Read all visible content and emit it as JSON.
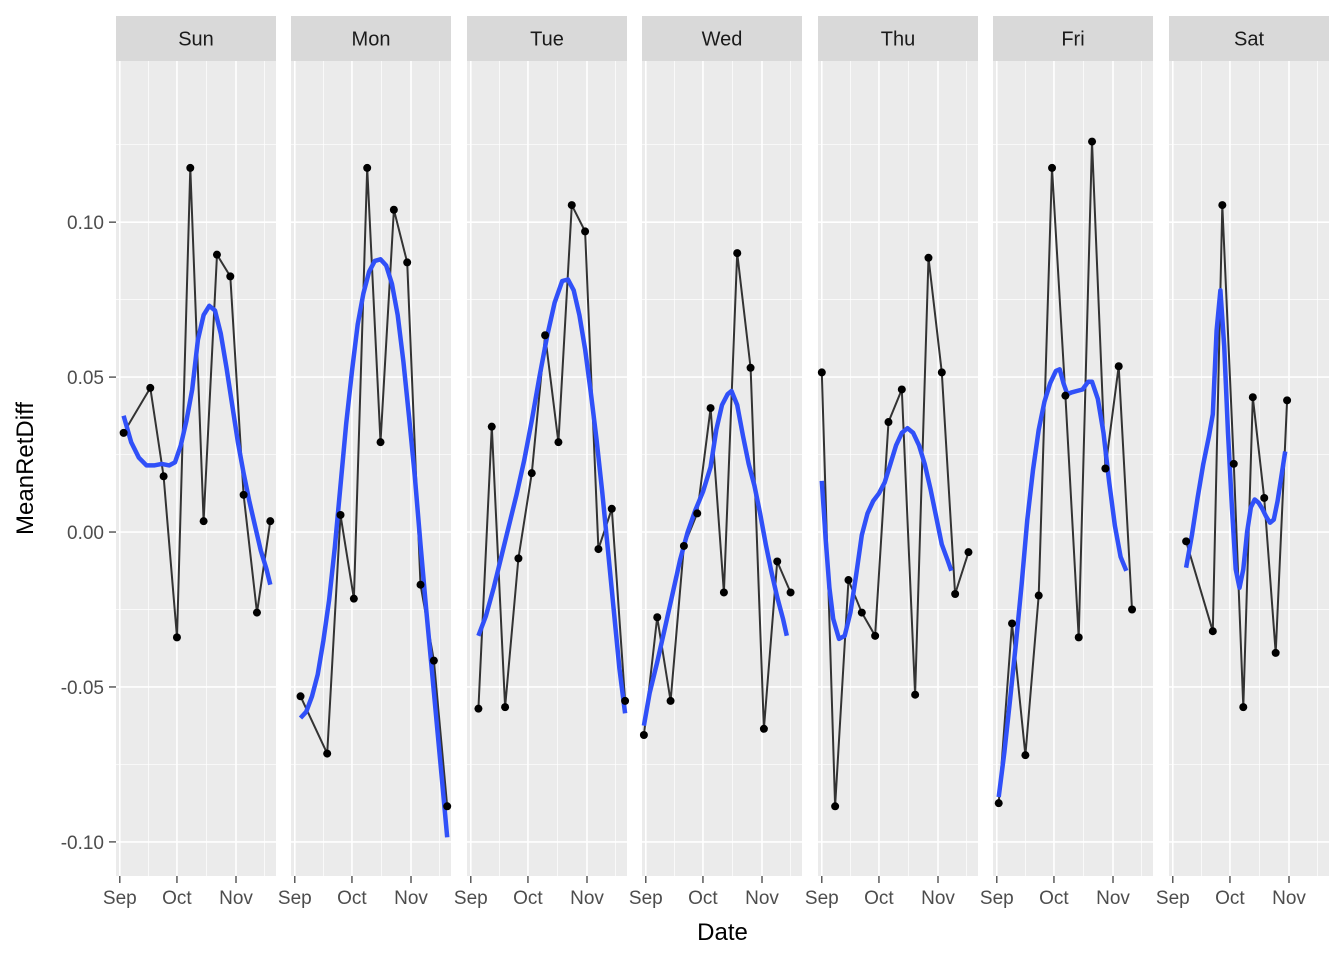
{
  "chart_data": {
    "type": "line",
    "facet_by": "weekday",
    "xlabel": "Date",
    "ylabel": "MeanRetDiff",
    "x_unit": "day of year 2015",
    "xlim": [
      242,
      326
    ],
    "ylim": [
      -0.111,
      0.152
    ],
    "y_ticks": [
      -0.1,
      -0.05,
      0.0,
      0.05,
      0.1
    ],
    "y_tick_labels": [
      "-0.10",
      "-0.05",
      "0.00",
      "0.05",
      "0.10"
    ],
    "x_ticks": [
      244,
      274,
      305
    ],
    "x_tick_labels": [
      "Sep",
      "Oct",
      "Nov"
    ],
    "grid": true,
    "colors": {
      "line": "#333333",
      "points": "#000000",
      "smooth": "#3050f8",
      "panel": "#ebebeb",
      "grid": "#ffffff",
      "strip": "#d9d9d9"
    },
    "panels": [
      {
        "name": "Sun",
        "points": [
          [
            246,
            0.032
          ],
          [
            260,
            0.0465
          ],
          [
            267,
            0.018
          ],
          [
            274,
            -0.034
          ],
          [
            281,
            0.1175
          ],
          [
            288,
            0.0035
          ],
          [
            295,
            0.0895
          ],
          [
            302,
            0.0825
          ],
          [
            309,
            0.012
          ],
          [
            316,
            -0.026
          ],
          [
            323,
            0.0035
          ]
        ],
        "smooth": [
          [
            246,
            0.0375
          ],
          [
            250,
            0.029
          ],
          [
            254,
            0.024
          ],
          [
            258,
            0.0215
          ],
          [
            262,
            0.0215
          ],
          [
            266,
            0.022
          ],
          [
            270,
            0.0215
          ],
          [
            273,
            0.0225
          ],
          [
            276,
            0.028
          ],
          [
            279,
            0.036
          ],
          [
            282,
            0.046
          ],
          [
            285,
            0.062
          ],
          [
            288,
            0.07
          ],
          [
            291,
            0.073
          ],
          [
            294,
            0.0715
          ],
          [
            297,
            0.064
          ],
          [
            300,
            0.053
          ],
          [
            303,
            0.041
          ],
          [
            306,
            0.029
          ],
          [
            309,
            0.019
          ],
          [
            312,
            0.01
          ],
          [
            315,
            0.002
          ],
          [
            318,
            -0.006
          ],
          [
            321,
            -0.012
          ],
          [
            323,
            -0.017
          ]
        ]
      },
      {
        "name": "Mon",
        "points": [
          [
            247,
            -0.053
          ],
          [
            261,
            -0.0715
          ],
          [
            268,
            0.0055
          ],
          [
            275,
            -0.0215
          ],
          [
            282,
            0.1175
          ],
          [
            289,
            0.029
          ],
          [
            296,
            0.104
          ],
          [
            303,
            0.087
          ],
          [
            310,
            -0.017
          ],
          [
            317,
            -0.0415
          ],
          [
            324,
            -0.0885
          ]
        ],
        "smooth": [
          [
            247,
            -0.06
          ],
          [
            250,
            -0.058
          ],
          [
            253,
            -0.053
          ],
          [
            256,
            -0.046
          ],
          [
            259,
            -0.035
          ],
          [
            262,
            -0.022
          ],
          [
            265,
            -0.005
          ],
          [
            268,
            0.015
          ],
          [
            271,
            0.035
          ],
          [
            274,
            0.052
          ],
          [
            277,
            0.067
          ],
          [
            280,
            0.077
          ],
          [
            283,
            0.084
          ],
          [
            286,
            0.0875
          ],
          [
            289,
            0.088
          ],
          [
            292,
            0.086
          ],
          [
            295,
            0.08
          ],
          [
            298,
            0.07
          ],
          [
            301,
            0.055
          ],
          [
            304,
            0.037
          ],
          [
            307,
            0.018
          ],
          [
            310,
            -0.004
          ],
          [
            313,
            -0.025
          ],
          [
            316,
            -0.045
          ],
          [
            319,
            -0.065
          ],
          [
            322,
            -0.085
          ],
          [
            324,
            -0.0985
          ]
        ]
      },
      {
        "name": "Tue",
        "points": [
          [
            248,
            -0.057
          ],
          [
            255,
            0.034
          ],
          [
            262,
            -0.0565
          ],
          [
            269,
            -0.0085
          ],
          [
            276,
            0.019
          ],
          [
            283,
            0.0635
          ],
          [
            290,
            0.029
          ],
          [
            297,
            0.1055
          ],
          [
            304,
            0.097
          ],
          [
            311,
            -0.0055
          ],
          [
            318,
            0.0075
          ],
          [
            325,
            -0.0545
          ]
        ],
        "smooth": [
          [
            248,
            -0.0335
          ],
          [
            252,
            -0.027
          ],
          [
            256,
            -0.018
          ],
          [
            260,
            -0.008
          ],
          [
            264,
            0.002
          ],
          [
            268,
            0.012
          ],
          [
            272,
            0.023
          ],
          [
            276,
            0.036
          ],
          [
            280,
            0.05
          ],
          [
            284,
            0.063
          ],
          [
            288,
            0.074
          ],
          [
            292,
            0.081
          ],
          [
            295,
            0.0815
          ],
          [
            298,
            0.078
          ],
          [
            301,
            0.07
          ],
          [
            304,
            0.059
          ],
          [
            307,
            0.045
          ],
          [
            310,
            0.03
          ],
          [
            313,
            0.013
          ],
          [
            316,
            -0.006
          ],
          [
            319,
            -0.025
          ],
          [
            322,
            -0.044
          ],
          [
            325,
            -0.0585
          ]
        ]
      },
      {
        "name": "Wed",
        "points": [
          [
            243,
            -0.0655
          ],
          [
            250,
            -0.0275
          ],
          [
            257,
            -0.0545
          ],
          [
            264,
            -0.0045
          ],
          [
            271,
            0.006
          ],
          [
            278,
            0.04
          ],
          [
            285,
            -0.0195
          ],
          [
            292,
            0.09
          ],
          [
            299,
            0.053
          ],
          [
            306,
            -0.0635
          ],
          [
            313,
            -0.0095
          ],
          [
            320,
            -0.0195
          ]
        ],
        "smooth": [
          [
            243,
            -0.0625
          ],
          [
            246,
            -0.052
          ],
          [
            250,
            -0.042
          ],
          [
            254,
            -0.031
          ],
          [
            258,
            -0.02
          ],
          [
            262,
            -0.009
          ],
          [
            266,
            0.0
          ],
          [
            270,
            0.007
          ],
          [
            274,
            0.013
          ],
          [
            278,
            0.021
          ],
          [
            281,
            0.033
          ],
          [
            284,
            0.041
          ],
          [
            287,
            0.0445
          ],
          [
            289,
            0.0455
          ],
          [
            292,
            0.041
          ],
          [
            295,
            0.031
          ],
          [
            298,
            0.022
          ],
          [
            301,
            0.015
          ],
          [
            304,
            0.006
          ],
          [
            307,
            -0.004
          ],
          [
            310,
            -0.013
          ],
          [
            313,
            -0.021
          ],
          [
            316,
            -0.028
          ],
          [
            318,
            -0.0335
          ]
        ]
      },
      {
        "name": "Thu",
        "points": [
          [
            244,
            0.0515
          ],
          [
            251,
            -0.0885
          ],
          [
            258,
            -0.0155
          ],
          [
            265,
            -0.026
          ],
          [
            272,
            -0.0335
          ],
          [
            279,
            0.0355
          ],
          [
            286,
            0.046
          ],
          [
            293,
            -0.0525
          ],
          [
            300,
            0.0885
          ],
          [
            307,
            0.0515
          ],
          [
            314,
            -0.02
          ],
          [
            321,
            -0.0065
          ]
        ],
        "smooth": [
          [
            244,
            0.0165
          ],
          [
            246,
            -0.002
          ],
          [
            248,
            -0.018
          ],
          [
            250,
            -0.028
          ],
          [
            253,
            -0.0345
          ],
          [
            256,
            -0.0335
          ],
          [
            259,
            -0.026
          ],
          [
            262,
            -0.014
          ],
          [
            265,
            -0.001
          ],
          [
            268,
            0.006
          ],
          [
            271,
            0.01
          ],
          [
            274,
            0.0125
          ],
          [
            277,
            0.016
          ],
          [
            280,
            0.022
          ],
          [
            283,
            0.028
          ],
          [
            286,
            0.032
          ],
          [
            289,
            0.0335
          ],
          [
            292,
            0.032
          ],
          [
            295,
            0.028
          ],
          [
            298,
            0.022
          ],
          [
            301,
            0.014
          ],
          [
            304,
            0.005
          ],
          [
            307,
            -0.004
          ],
          [
            310,
            -0.009
          ],
          [
            312,
            -0.0125
          ]
        ]
      },
      {
        "name": "Fri",
        "points": [
          [
            245,
            -0.0875
          ],
          [
            252,
            -0.0295
          ],
          [
            259,
            -0.072
          ],
          [
            266,
            -0.0205
          ],
          [
            273,
            0.1175
          ],
          [
            280,
            0.044
          ],
          [
            287,
            -0.034
          ],
          [
            294,
            0.126
          ],
          [
            301,
            0.0205
          ],
          [
            308,
            0.0535
          ],
          [
            315,
            -0.025
          ]
        ],
        "smooth": [
          [
            245,
            -0.0855
          ],
          [
            248,
            -0.071
          ],
          [
            251,
            -0.054
          ],
          [
            254,
            -0.036
          ],
          [
            257,
            -0.017
          ],
          [
            260,
            0.004
          ],
          [
            263,
            0.02
          ],
          [
            266,
            0.033
          ],
          [
            269,
            0.042
          ],
          [
            272,
            0.048
          ],
          [
            275,
            0.052
          ],
          [
            277,
            0.0525
          ],
          [
            279,
            0.048
          ],
          [
            281,
            0.0445
          ],
          [
            283,
            0.045
          ],
          [
            286,
            0.0455
          ],
          [
            289,
            0.046
          ],
          [
            292,
            0.0485
          ],
          [
            294,
            0.0485
          ],
          [
            297,
            0.043
          ],
          [
            300,
            0.032
          ],
          [
            303,
            0.016
          ],
          [
            306,
            0.002
          ],
          [
            309,
            -0.008
          ],
          [
            312,
            -0.0125
          ]
        ]
      },
      {
        "name": "Sat",
        "points": [
          [
            251,
            -0.003
          ],
          [
            265,
            -0.032
          ],
          [
            270,
            0.1055
          ],
          [
            276,
            0.022
          ],
          [
            281,
            -0.0565
          ],
          [
            286,
            0.0435
          ],
          [
            292,
            0.011
          ],
          [
            298,
            -0.039
          ],
          [
            304,
            0.0425
          ]
        ],
        "smooth": [
          [
            251,
            -0.0115
          ],
          [
            254,
            -0.001
          ],
          [
            257,
            0.011
          ],
          [
            260,
            0.022
          ],
          [
            263,
            0.031
          ],
          [
            265,
            0.038
          ],
          [
            267,
            0.065
          ],
          [
            269,
            0.078
          ],
          [
            271,
            0.06
          ],
          [
            273,
            0.032
          ],
          [
            275,
            0.008
          ],
          [
            277,
            -0.012
          ],
          [
            279,
            -0.018
          ],
          [
            281,
            -0.012
          ],
          [
            283,
            0.0
          ],
          [
            285,
            0.008
          ],
          [
            287,
            0.0105
          ],
          [
            289,
            0.0095
          ],
          [
            291,
            0.0075
          ],
          [
            293,
            0.005
          ],
          [
            295,
            0.003
          ],
          [
            297,
            0.004
          ],
          [
            299,
            0.01
          ],
          [
            301,
            0.018
          ],
          [
            303,
            0.026
          ]
        ]
      }
    ]
  }
}
